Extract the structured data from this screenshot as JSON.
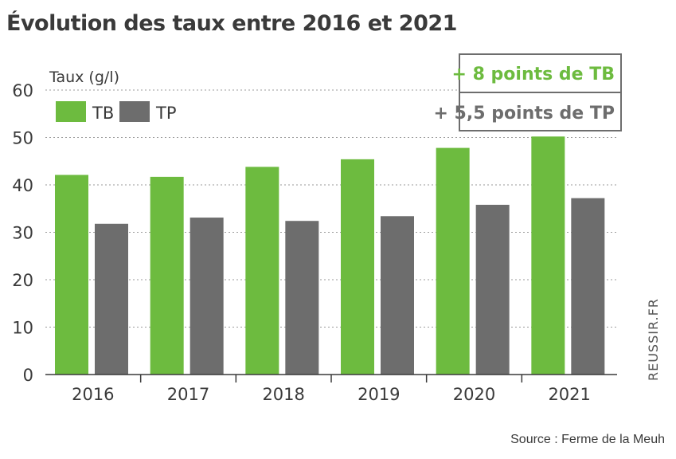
{
  "chart_data": {
    "type": "bar",
    "title": "Évolution des taux entre 2016 et 2021",
    "ylabel": "Taux (g/l)",
    "xlabel": "",
    "ylim": [
      0,
      60
    ],
    "yticks": [
      0,
      10,
      20,
      30,
      40,
      50,
      60
    ],
    "grid": true,
    "legend_position": "top-left",
    "categories": [
      "2016",
      "2017",
      "2018",
      "2019",
      "2020",
      "2021"
    ],
    "series": [
      {
        "name": "TB",
        "color": "#6dbb3f",
        "values": [
          42.1,
          41.7,
          43.8,
          45.4,
          47.8,
          50.2
        ]
      },
      {
        "name": "TP",
        "color": "#6d6d6d",
        "values": [
          31.8,
          33.1,
          32.4,
          33.4,
          35.8,
          37.2
        ]
      }
    ],
    "annotations": [
      {
        "text": "+ 8 points de TB",
        "color": "#6dbb3f"
      },
      {
        "text": "+ 5,5 points de TP",
        "color": "#6d6d6d"
      }
    ]
  },
  "credit": "REUSSIR.FR",
  "source": "Source : Ferme de la Meuh"
}
